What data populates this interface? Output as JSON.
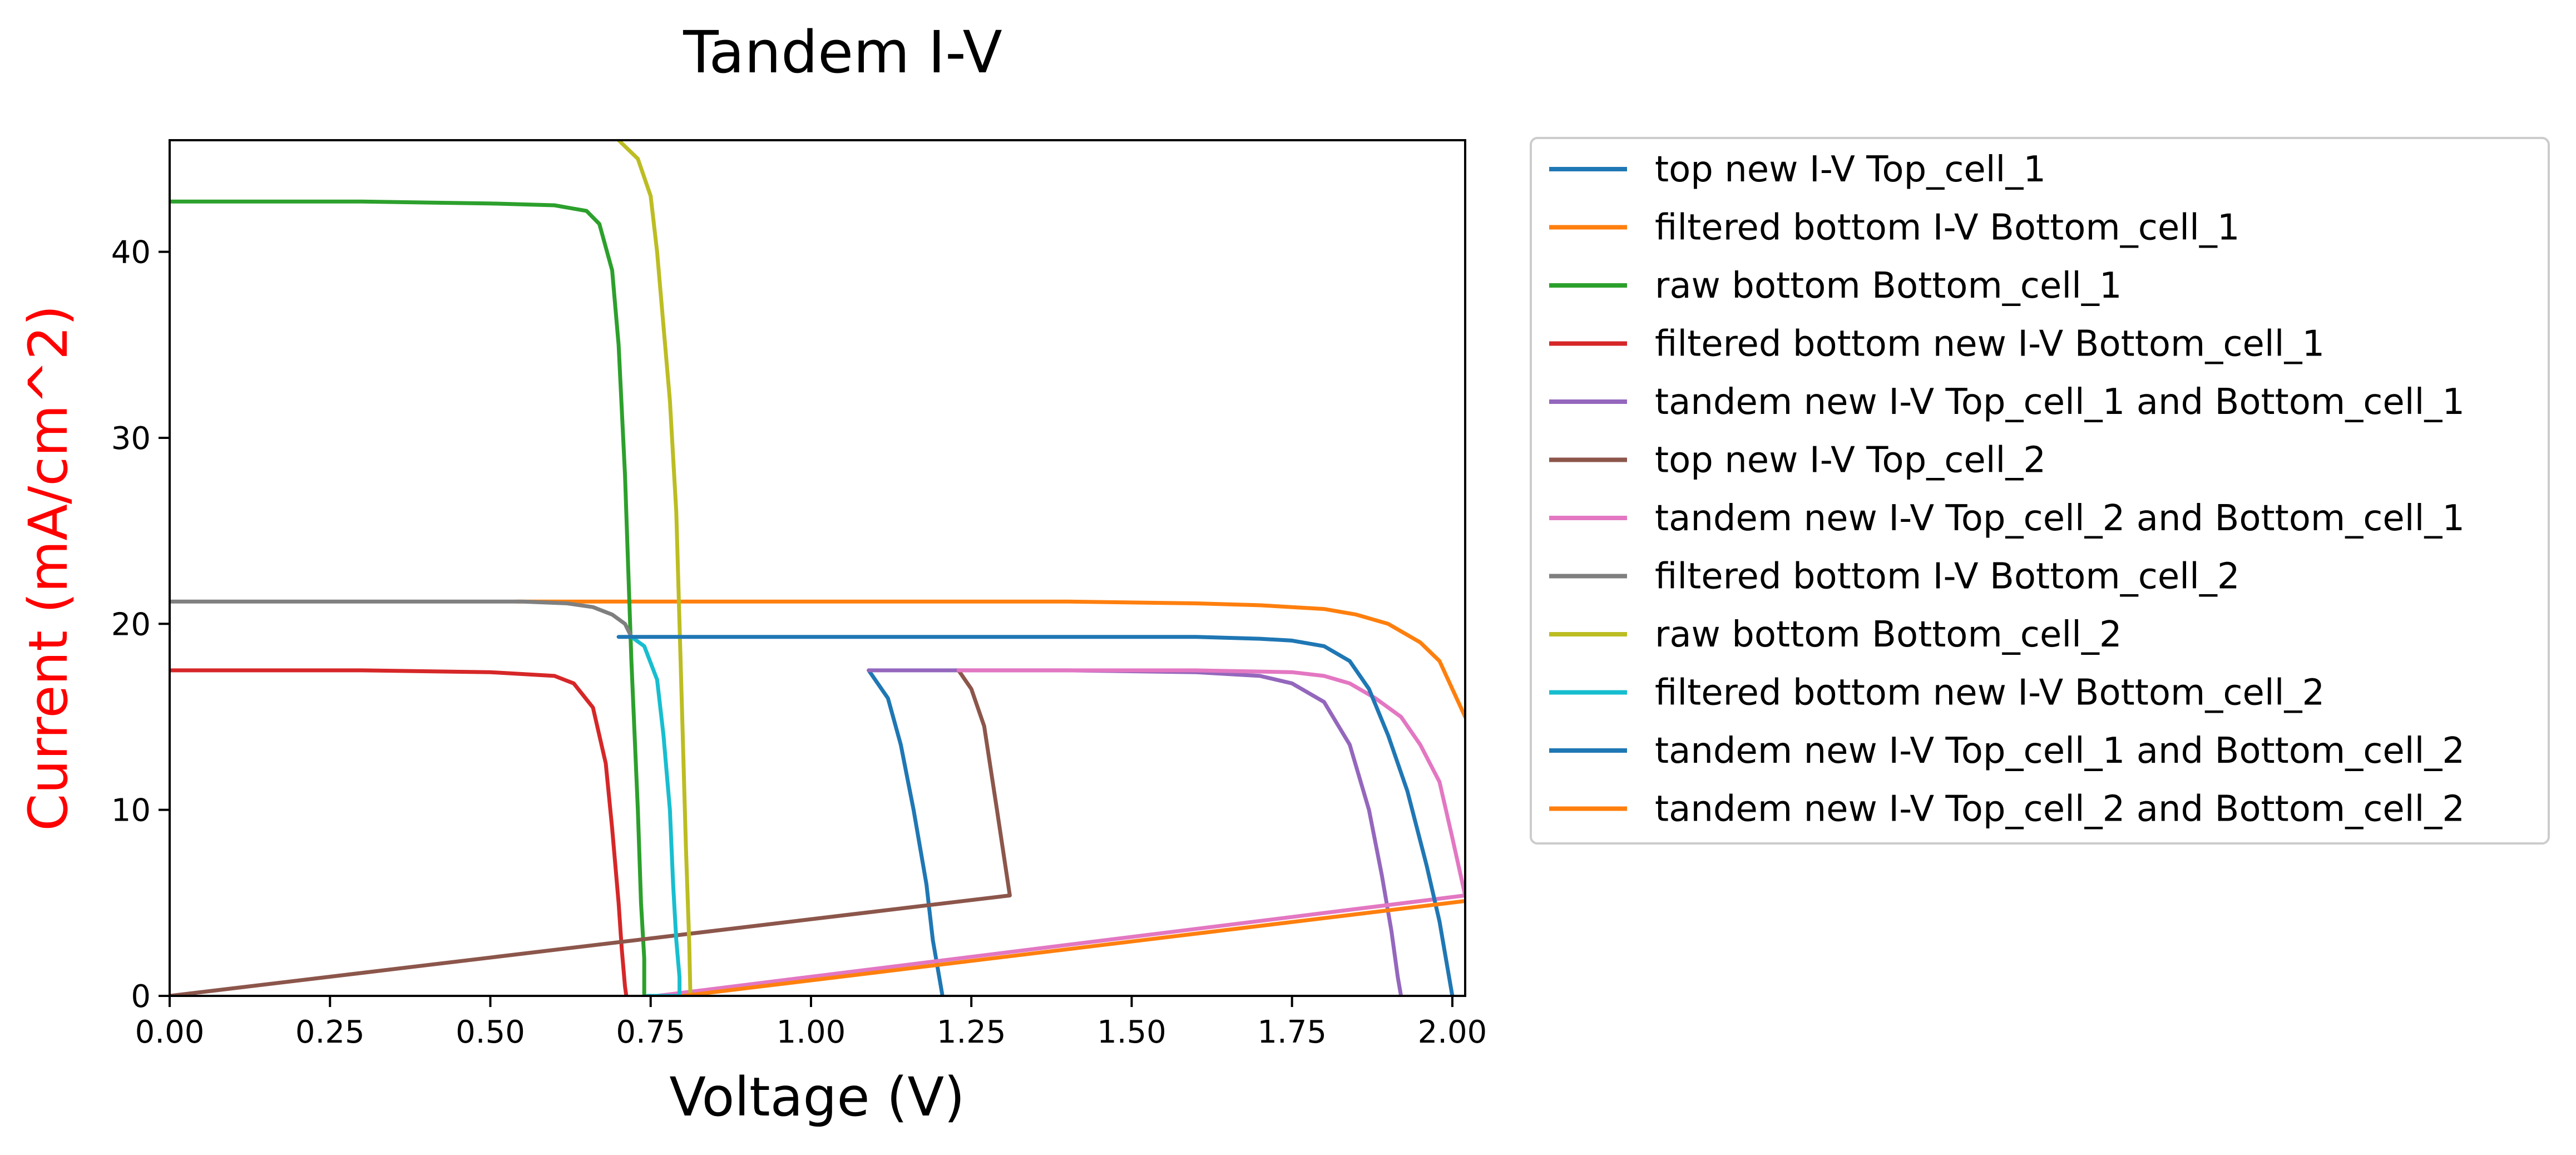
{
  "chart_data": {
    "type": "line",
    "title": "Tandem I-V",
    "xlabel": "Voltage (V)",
    "ylabel": "Current (mA/cm^2)",
    "ylabel_color": "#ff0000",
    "xlim": [
      0.0,
      2.02
    ],
    "ylim": [
      0,
      46
    ],
    "x_ticks": [
      0.0,
      0.25,
      0.5,
      0.75,
      1.0,
      1.25,
      1.5,
      1.75,
      2.0
    ],
    "x_tick_labels": [
      "0.00",
      "0.25",
      "0.50",
      "0.75",
      "1.00",
      "1.25",
      "1.50",
      "1.75",
      "2.00"
    ],
    "y_ticks": [
      0,
      10,
      20,
      30,
      40
    ],
    "y_tick_labels": [
      "0",
      "10",
      "20",
      "30",
      "40"
    ],
    "grid": false,
    "legend_position": "outside-right",
    "series": [
      {
        "name": "top new I-V Top_cell_1",
        "color": "#1f77b4",
        "x": [
          1.09,
          1.12,
          1.14,
          1.16,
          1.18,
          1.19,
          1.2,
          1.205
        ],
        "y": [
          17.5,
          16.0,
          13.5,
          10.0,
          6.0,
          3.0,
          1.0,
          0.0
        ]
      },
      {
        "name": "filtered bottom I-V Bottom_cell_1",
        "color": "#ff7f0e",
        "x": [
          0.54,
          0.8,
          1.0,
          1.2,
          1.4,
          1.6,
          1.7,
          1.8,
          1.85,
          1.9,
          1.95,
          1.98,
          2.0,
          2.02
        ],
        "y": [
          21.2,
          21.2,
          21.2,
          21.2,
          21.2,
          21.1,
          21.0,
          20.8,
          20.5,
          20.0,
          19.0,
          18.0,
          16.5,
          15.0
        ]
      },
      {
        "name": "raw bottom Bottom_cell_1",
        "color": "#2ca02c",
        "x": [
          0.0,
          0.3,
          0.5,
          0.6,
          0.65,
          0.67,
          0.69,
          0.7,
          0.71,
          0.72,
          0.73,
          0.735,
          0.74,
          0.74,
          0.74
        ],
        "y": [
          42.7,
          42.7,
          42.6,
          42.5,
          42.2,
          41.5,
          39.0,
          35.0,
          28.0,
          18.0,
          10.0,
          5.0,
          2.0,
          0.0,
          0.0
        ]
      },
      {
        "name": "filtered bottom new I-V Bottom_cell_1",
        "color": "#d62728",
        "x": [
          0.0,
          0.3,
          0.5,
          0.6,
          0.63,
          0.66,
          0.68,
          0.69,
          0.7,
          0.705,
          0.71,
          0.712
        ],
        "y": [
          17.5,
          17.5,
          17.4,
          17.2,
          16.8,
          15.5,
          12.5,
          9.0,
          5.0,
          2.5,
          0.5,
          0.0
        ]
      },
      {
        "name": "tandem new I-V Top_cell_1 and Bottom_cell_1",
        "color": "#9467bd",
        "x": [
          1.09,
          1.4,
          1.6,
          1.7,
          1.75,
          1.8,
          1.84,
          1.87,
          1.89,
          1.905,
          1.915,
          1.92,
          1.92
        ],
        "y": [
          17.5,
          17.5,
          17.4,
          17.2,
          16.8,
          15.8,
          13.5,
          10.0,
          6.5,
          3.5,
          1.0,
          0.0,
          0.0
        ]
      },
      {
        "name": "top new I-V Top_cell_2",
        "color": "#8c564b",
        "x": [
          0.0,
          1.31,
          1.29,
          1.27,
          1.25,
          1.23
        ],
        "y": [
          0.0,
          5.4,
          10.0,
          14.5,
          16.5,
          17.5
        ]
      },
      {
        "name": "tandem new I-V Top_cell_2 and Bottom_cell_1",
        "color": "#e377c2",
        "x": [
          0.76,
          2.02,
          2.0,
          1.98,
          1.95,
          1.92,
          1.88,
          1.84,
          1.8,
          1.75,
          1.6,
          1.23
        ],
        "y": [
          0.0,
          5.4,
          8.5,
          11.5,
          13.5,
          15.0,
          16.0,
          16.8,
          17.2,
          17.4,
          17.5,
          17.5
        ]
      },
      {
        "name": "filtered bottom I-V Bottom_cell_2",
        "color": "#7f7f7f",
        "x": [
          0.0,
          0.4,
          0.55,
          0.62,
          0.66,
          0.69,
          0.71,
          0.72
        ],
        "y": [
          21.2,
          21.2,
          21.2,
          21.1,
          20.9,
          20.5,
          20.0,
          19.3
        ]
      },
      {
        "name": "raw bottom Bottom_cell_2",
        "color": "#bcbd22",
        "x": [
          0.7,
          0.73,
          0.75,
          0.76,
          0.77,
          0.78,
          0.79,
          0.795,
          0.8,
          0.805,
          0.81,
          0.812,
          0.812
        ],
        "y": [
          46.0,
          45.0,
          43.0,
          40.0,
          36.0,
          32.0,
          26.0,
          20.0,
          14.0,
          8.0,
          3.0,
          0.0,
          0.0
        ]
      },
      {
        "name": "filtered bottom new I-V Bottom_cell_2",
        "color": "#17becf",
        "x": [
          0.72,
          0.74,
          0.76,
          0.77,
          0.78,
          0.785,
          0.79,
          0.795,
          0.795,
          0.76,
          0.745
        ],
        "y": [
          19.3,
          18.8,
          17.0,
          14.0,
          10.0,
          6.0,
          3.0,
          1.0,
          0.0,
          0.0,
          0.0
        ]
      },
      {
        "name": "tandem new I-V Top_cell_1 and Bottom_cell_2",
        "color": "#1f77b4",
        "x": [
          0.7,
          1.0,
          1.3,
          1.6,
          1.7,
          1.75,
          1.8,
          1.84,
          1.87,
          1.9,
          1.93,
          1.96,
          1.98,
          1.99,
          2.0
        ],
        "y": [
          19.3,
          19.3,
          19.3,
          19.3,
          19.2,
          19.1,
          18.8,
          18.0,
          16.5,
          14.0,
          11.0,
          7.0,
          4.0,
          2.0,
          0.0
        ]
      },
      {
        "name": "tandem new I-V Top_cell_2 and Bottom_cell_2",
        "color": "#ff7f0e",
        "x": [
          0.8,
          2.02
        ],
        "y": [
          0.0,
          5.1
        ]
      }
    ]
  }
}
